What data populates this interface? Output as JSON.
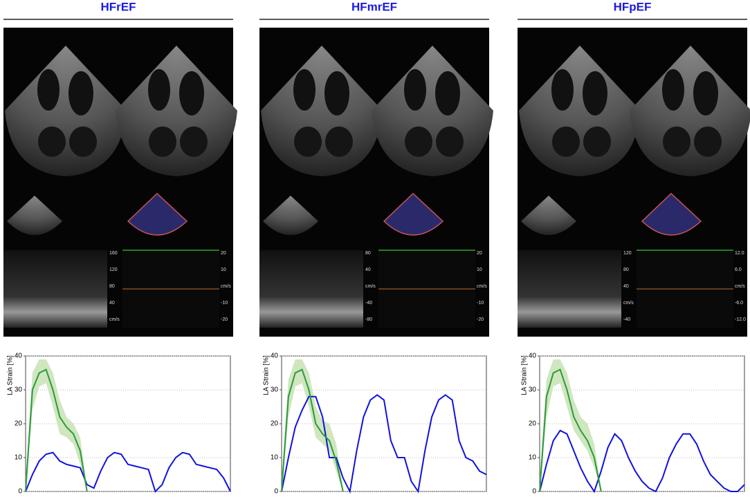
{
  "chart_data": [
    {
      "type": "line",
      "title": "HFrEF",
      "ylabel": "LA Strain [%]",
      "ylim": [
        0,
        40
      ],
      "yticks": [
        0,
        10,
        20,
        30,
        40
      ],
      "grid": true,
      "x": [
        0,
        1,
        2,
        3,
        4,
        5,
        6,
        7,
        8,
        9,
        10,
        11,
        12,
        13,
        14,
        15,
        16,
        17,
        18,
        19,
        20,
        21,
        22,
        23,
        24,
        25,
        26,
        27,
        28,
        29,
        30
      ],
      "series": [
        {
          "color": "#1010e0",
          "values": [
            0,
            5,
            9,
            11,
            11.5,
            9,
            8,
            7.5,
            7,
            2,
            1,
            6,
            10,
            11.5,
            11,
            8,
            7.5,
            7,
            6.5,
            0,
            2,
            7,
            10,
            11.5,
            11,
            8,
            7.5,
            7,
            6.5,
            4,
            0
          ]
        },
        {
          "color": "#2a9a3a",
          "band_color": "#cfe6bf",
          "values": [
            0,
            30,
            35,
            36,
            30,
            22,
            19,
            17,
            12,
            0,
            null,
            null,
            null,
            null,
            null,
            null,
            null,
            null,
            null,
            null,
            null,
            null,
            null,
            null,
            null,
            null,
            null,
            null,
            null,
            null,
            null
          ],
          "upper": [
            4,
            35,
            39,
            39,
            35,
            27,
            22,
            20,
            16,
            1,
            null,
            null,
            null,
            null,
            null,
            null,
            null,
            null,
            null,
            null,
            null,
            null,
            null,
            null,
            null,
            null,
            null,
            null,
            null,
            null,
            null
          ],
          "lower": [
            0,
            24,
            31,
            32,
            25,
            17,
            16,
            14,
            8,
            0,
            null,
            null,
            null,
            null,
            null,
            null,
            null,
            null,
            null,
            null,
            null,
            null,
            null,
            null,
            null,
            null,
            null,
            null,
            null,
            null,
            null
          ]
        }
      ],
      "doppler_left": [
        "160",
        "120",
        "80",
        "40",
        "cm/s"
      ],
      "doppler_right": [
        "20",
        "10",
        "cm/s",
        "-10",
        "-20"
      ]
    },
    {
      "type": "line",
      "title": "HFmrEF",
      "ylabel": "LA Strain [%]",
      "ylim": [
        0,
        40
      ],
      "yticks": [
        0,
        10,
        20,
        30,
        40
      ],
      "grid": true,
      "x": [
        0,
        1,
        2,
        3,
        4,
        5,
        6,
        7,
        8,
        9,
        10,
        11,
        12,
        13,
        14,
        15,
        16,
        17,
        18,
        19,
        20,
        21,
        22,
        23,
        24,
        25,
        26,
        27,
        28,
        29,
        30
      ],
      "series": [
        {
          "color": "#1010e0",
          "values": [
            0,
            10,
            19,
            24,
            28,
            28,
            22,
            10,
            10,
            4,
            0,
            12,
            22,
            27,
            28.5,
            27,
            15,
            10,
            10,
            3,
            0,
            12,
            22,
            27,
            28.5,
            27,
            15,
            10,
            9,
            6,
            5
          ]
        },
        {
          "color": "#2a9a3a",
          "band_color": "#cfe6bf",
          "values": [
            0,
            28,
            35,
            36,
            30,
            20,
            17,
            15,
            9,
            0,
            null,
            null,
            null,
            null,
            null,
            null,
            null,
            null,
            null,
            null,
            null,
            null,
            null,
            null,
            null,
            null,
            null,
            null,
            null,
            null,
            null
          ],
          "upper": [
            4,
            33,
            39,
            39,
            35,
            25,
            21,
            20,
            14,
            1,
            null,
            null,
            null,
            null,
            null,
            null,
            null,
            null,
            null,
            null,
            null,
            null,
            null,
            null,
            null,
            null,
            null,
            null,
            null,
            null,
            null
          ],
          "lower": [
            0,
            22,
            31,
            32,
            25,
            16,
            14,
            12,
            6,
            0,
            null,
            null,
            null,
            null,
            null,
            null,
            null,
            null,
            null,
            null,
            null,
            null,
            null,
            null,
            null,
            null,
            null,
            null,
            null,
            null,
            null
          ]
        }
      ],
      "doppler_left": [
        "80",
        "40",
        "cm/s",
        "-40",
        "-80"
      ],
      "doppler_right": [
        "20",
        "10",
        "cm/s",
        "-10",
        "-20"
      ]
    },
    {
      "type": "line",
      "title": "HFpEF",
      "ylabel": "LA Strain [%]",
      "ylim": [
        0,
        40
      ],
      "yticks": [
        0,
        10,
        20,
        30,
        40
      ],
      "grid": true,
      "x": [
        0,
        1,
        2,
        3,
        4,
        5,
        6,
        7,
        8,
        9,
        10,
        11,
        12,
        13,
        14,
        15,
        16,
        17,
        18,
        19,
        20,
        21,
        22,
        23,
        24,
        25,
        26,
        27,
        28,
        29,
        30
      ],
      "series": [
        {
          "color": "#1010e0",
          "values": [
            0,
            8,
            15,
            18,
            17,
            12,
            7,
            3,
            0,
            6,
            13,
            17,
            15,
            10,
            6,
            3,
            1,
            0,
            4,
            10,
            14,
            17,
            17,
            14,
            9,
            5,
            3,
            1,
            0,
            0,
            2
          ]
        },
        {
          "color": "#2a9a3a",
          "band_color": "#cfe6bf",
          "values": [
            0,
            28,
            35,
            36,
            30,
            22,
            18,
            15,
            10,
            0,
            null,
            null,
            null,
            null,
            null,
            null,
            null,
            null,
            null,
            null,
            null,
            null,
            null,
            null,
            null,
            null,
            null,
            null,
            null,
            null,
            null
          ],
          "upper": [
            4,
            33,
            39,
            39,
            35,
            27,
            22,
            20,
            14,
            1,
            null,
            null,
            null,
            null,
            null,
            null,
            null,
            null,
            null,
            null,
            null,
            null,
            null,
            null,
            null,
            null,
            null,
            null,
            null,
            null,
            null
          ],
          "lower": [
            0,
            22,
            31,
            32,
            25,
            18,
            15,
            12,
            7,
            0,
            null,
            null,
            null,
            null,
            null,
            null,
            null,
            null,
            null,
            null,
            null,
            null,
            null,
            null,
            null,
            null,
            null,
            null,
            null,
            null,
            null
          ]
        }
      ],
      "doppler_left": [
        "120",
        "80",
        "40",
        "cm/s",
        "-40"
      ],
      "doppler_right": [
        "12.0",
        "6.0",
        "cm/s",
        "-6.0",
        "-12.0"
      ]
    }
  ]
}
